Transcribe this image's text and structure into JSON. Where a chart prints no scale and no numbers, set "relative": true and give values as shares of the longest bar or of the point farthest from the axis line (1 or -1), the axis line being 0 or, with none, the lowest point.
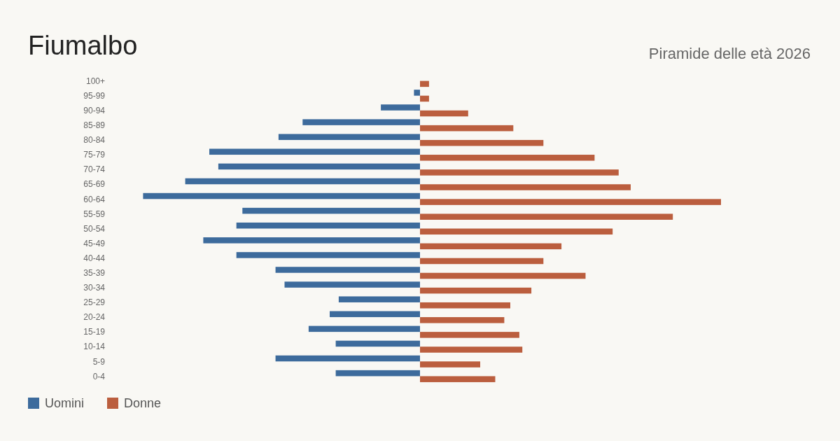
{
  "chart_data": {
    "type": "bar",
    "orientation": "horizontal",
    "relative": true,
    "title": "Fiumalbo",
    "subtitle": "Piramide delle età 2026",
    "categories": [
      "100+",
      "95-99",
      "90-94",
      "85-89",
      "80-84",
      "75-79",
      "70-74",
      "65-69",
      "60-64",
      "55-59",
      "50-54",
      "45-49",
      "40-44",
      "35-39",
      "30-34",
      "25-29",
      "20-24",
      "15-19",
      "10-14",
      "5-9",
      "0-4"
    ],
    "series": [
      {
        "name": "Uomini",
        "color": "#3d6b9c",
        "values": [
          0,
          -0.02,
          -0.13,
          -0.39,
          -0.47,
          -0.7,
          -0.67,
          -0.78,
          -0.92,
          -0.59,
          -0.61,
          -0.72,
          -0.61,
          -0.48,
          -0.45,
          -0.27,
          -0.3,
          -0.37,
          -0.28,
          -0.48,
          -0.28
        ]
      },
      {
        "name": "Donne",
        "color": "#bb5e3e",
        "values": [
          0.03,
          0.03,
          0.16,
          0.31,
          0.41,
          0.58,
          0.66,
          0.7,
          1,
          0.84,
          0.64,
          0.47,
          0.41,
          0.55,
          0.37,
          0.3,
          0.28,
          0.33,
          0.34,
          0.2,
          0.25
        ]
      }
    ],
    "legend": "bottom left"
  }
}
